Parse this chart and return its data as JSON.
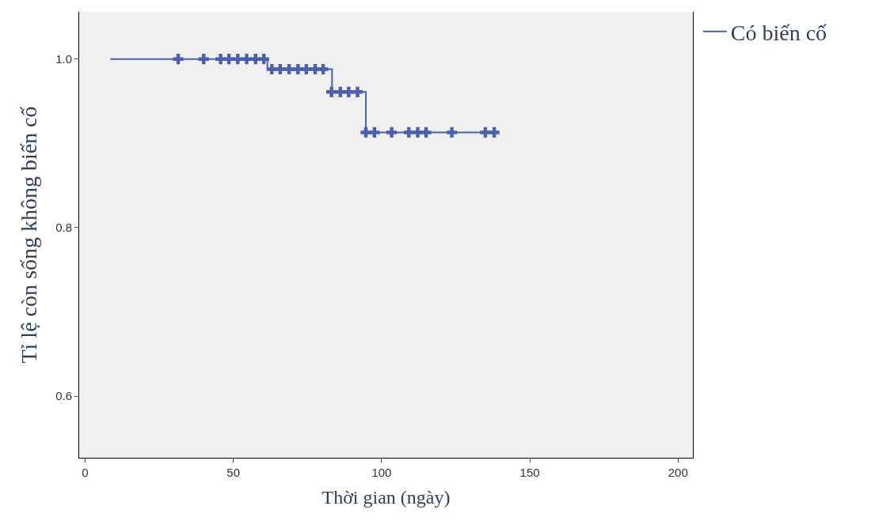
{
  "chart_data": {
    "type": "step",
    "xlabel": "Thời gian (ngày)",
    "ylabel": "Tỉ lệ còn sống không biến cố",
    "xlim": [
      -2,
      205
    ],
    "xticks": [
      0,
      50,
      100,
      150,
      200
    ],
    "ylim": [
      0.527,
      1.056
    ],
    "yticks": [
      {
        "value": 0.6,
        "label": "0.6"
      },
      {
        "value": 0.8,
        "label": "0.8"
      },
      {
        "value": 1.0,
        "label": "1.0"
      }
    ],
    "grid": false,
    "legend": "top right",
    "series": [
      {
        "name": "Có biến cố",
        "color": "#4a5fb0",
        "marker": "none",
        "x": [
          8.5,
          61.5,
          83.3,
          94.7,
          139
        ],
        "values": [
          1.0,
          0.988,
          0.961,
          0.913,
          0.913
        ]
      },
      {
        "type": "scatter",
        "color": "#4a5fb0",
        "marker": "cross",
        "x": [
          31.4,
          40,
          45.7,
          48.5,
          51.5,
          54.5,
          57.5,
          60.3,
          63,
          65.8,
          68.8,
          71.8,
          74.6,
          77.6,
          80.3,
          83.1,
          86.1,
          88.9,
          91.9,
          94.7,
          97.6,
          103.4,
          109.2,
          112.2,
          115,
          123.7,
          135,
          138
        ],
        "values": [
          1.0,
          1.0,
          1.0,
          1.0,
          1.0,
          1.0,
          1.0,
          1.0,
          0.988,
          0.988,
          0.988,
          0.988,
          0.988,
          0.988,
          0.988,
          0.961,
          0.961,
          0.961,
          0.961,
          0.913,
          0.913,
          0.913,
          0.913,
          0.913,
          0.913,
          0.913,
          0.913,
          0.913
        ]
      }
    ]
  }
}
